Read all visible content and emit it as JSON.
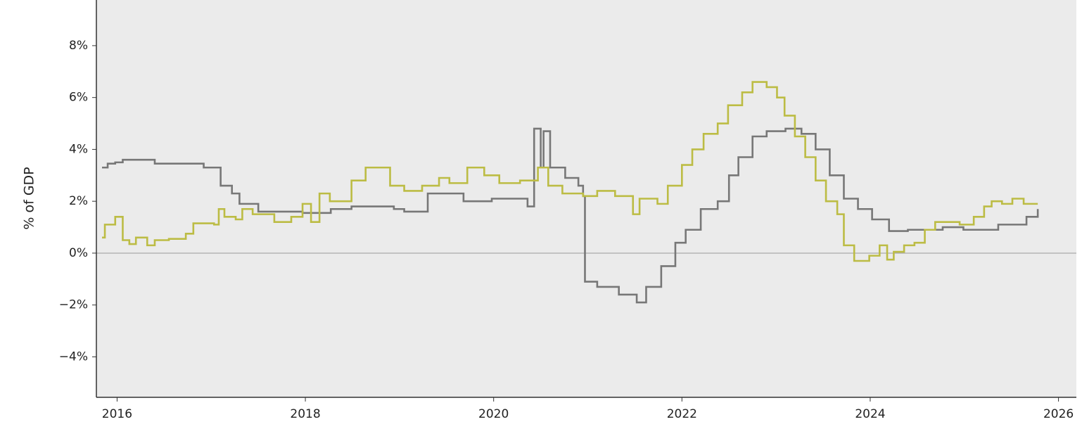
{
  "chart_data": {
    "type": "line",
    "step": true,
    "y_label": "% of GDP",
    "xlim": [
      2015.78,
      2026.19
    ],
    "ylim": [
      -5.56,
      9.76
    ],
    "xticks": [
      2016,
      2018,
      2020,
      2022,
      2024,
      2026
    ],
    "yticks": [
      {
        "value": -4,
        "label": "−4%"
      },
      {
        "value": -2,
        "label": "−2%"
      },
      {
        "value": 0,
        "label": "0%"
      },
      {
        "value": 2,
        "label": "2%"
      },
      {
        "value": 4,
        "label": "4%"
      },
      {
        "value": 6,
        "label": "6%"
      },
      {
        "value": 8,
        "label": "8%"
      }
    ],
    "zero_line": true,
    "grid": false,
    "series": [
      {
        "color": "#777777",
        "x": [
          2015.84,
          2015.9,
          2015.98,
          2016.06,
          2016.4,
          2016.92,
          2017.1,
          2017.22,
          2017.3,
          2017.5,
          2017.97,
          2018.27,
          2018.49,
          2018.94,
          2019.05,
          2019.3,
          2019.53,
          2019.68,
          2019.98,
          2020.36,
          2020.43,
          2020.5,
          2020.53,
          2020.6,
          2020.76,
          2020.9,
          2020.95,
          2020.97,
          2021.1,
          2021.33,
          2021.52,
          2021.62,
          2021.78,
          2021.93,
          2022.04,
          2022.2,
          2022.38,
          2022.5,
          2022.6,
          2022.75,
          2022.9,
          2023.1,
          2023.27,
          2023.42,
          2023.57,
          2023.72,
          2023.87,
          2024.02,
          2024.2,
          2024.4,
          2024.77,
          2024.99,
          2025.36,
          2025.66,
          2025.78
        ],
        "values": [
          3.3,
          3.45,
          3.5,
          3.6,
          3.45,
          3.3,
          2.6,
          2.3,
          1.9,
          1.6,
          1.55,
          1.7,
          1.8,
          1.7,
          1.6,
          2.3,
          2.3,
          2.0,
          2.1,
          1.8,
          4.8,
          3.3,
          4.7,
          3.3,
          2.9,
          2.6,
          2.2,
          -1.1,
          -1.3,
          -1.6,
          -1.9,
          -1.3,
          -0.5,
          0.4,
          0.9,
          1.7,
          2.0,
          3.0,
          3.7,
          4.5,
          4.7,
          4.8,
          4.6,
          4.0,
          3.0,
          2.1,
          1.7,
          1.3,
          0.85,
          0.9,
          1.0,
          0.9,
          1.1,
          1.4,
          1.7
        ]
      },
      {
        "color": "#bcbc44",
        "x": [
          2015.84,
          2015.87,
          2015.98,
          2016.06,
          2016.13,
          2016.2,
          2016.32,
          2016.4,
          2016.55,
          2016.73,
          2016.81,
          2017.03,
          2017.08,
          2017.14,
          2017.26,
          2017.33,
          2017.44,
          2017.67,
          2017.85,
          2017.97,
          2018.06,
          2018.15,
          2018.26,
          2018.49,
          2018.64,
          2018.71,
          2018.9,
          2019.05,
          2019.24,
          2019.42,
          2019.53,
          2019.72,
          2019.9,
          2020.06,
          2020.28,
          2020.47,
          2020.58,
          2020.73,
          2020.95,
          2021.1,
          2021.29,
          2021.48,
          2021.55,
          2021.74,
          2021.85,
          2022.0,
          2022.11,
          2022.23,
          2022.38,
          2022.49,
          2022.64,
          2022.75,
          2022.9,
          2023.01,
          2023.09,
          2023.2,
          2023.31,
          2023.42,
          2023.53,
          2023.65,
          2023.72,
          2023.83,
          2023.99,
          2024.1,
          2024.18,
          2024.25,
          2024.36,
          2024.47,
          2024.58,
          2024.69,
          2024.95,
          2025.1,
          2025.21,
          2025.29,
          2025.4,
          2025.51,
          2025.63,
          2025.78
        ],
        "values": [
          0.6,
          1.1,
          1.4,
          0.5,
          0.35,
          0.6,
          0.3,
          0.5,
          0.55,
          0.75,
          1.15,
          1.1,
          1.7,
          1.4,
          1.3,
          1.7,
          1.5,
          1.2,
          1.4,
          1.9,
          1.2,
          2.3,
          2.0,
          2.8,
          3.3,
          3.3,
          2.6,
          2.4,
          2.6,
          2.9,
          2.7,
          3.3,
          3.0,
          2.7,
          2.8,
          3.3,
          2.6,
          2.3,
          2.2,
          2.4,
          2.2,
          1.5,
          2.1,
          1.9,
          2.6,
          3.4,
          4.0,
          4.6,
          5.0,
          5.7,
          6.2,
          6.6,
          6.4,
          6.0,
          5.3,
          4.5,
          3.7,
          2.8,
          2.0,
          1.5,
          0.3,
          -0.3,
          -0.1,
          0.3,
          -0.25,
          0.05,
          0.3,
          0.4,
          0.9,
          1.2,
          1.1,
          1.4,
          1.8,
          2.0,
          1.9,
          2.1,
          1.9,
          1.9
        ]
      }
    ]
  }
}
